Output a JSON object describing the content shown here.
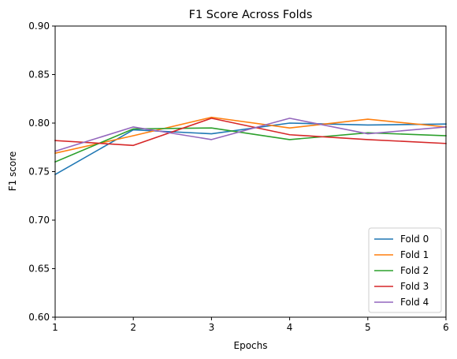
{
  "chart_data": {
    "type": "line",
    "title": "F1 Score Across Folds",
    "xlabel": "Epochs",
    "ylabel": "F1 score",
    "x": [
      1,
      2,
      3,
      4,
      5,
      6
    ],
    "xlim": [
      1,
      6
    ],
    "ylim": [
      0.6,
      0.9
    ],
    "xticks": [
      "1",
      "2",
      "3",
      "4",
      "5",
      "6"
    ],
    "yticks": [
      "0.60",
      "0.65",
      "0.70",
      "0.75",
      "0.80",
      "0.85",
      "0.90"
    ],
    "grid": false,
    "legend": "lower-right",
    "series": [
      {
        "name": "Fold 0",
        "color": "#1f77b4",
        "values": [
          0.747,
          0.793,
          0.789,
          0.8,
          0.798,
          0.799
        ]
      },
      {
        "name": "Fold 1",
        "color": "#ff7f0e",
        "values": [
          0.769,
          0.787,
          0.806,
          0.795,
          0.804,
          0.796
        ]
      },
      {
        "name": "Fold 2",
        "color": "#2ca02c",
        "values": [
          0.76,
          0.794,
          0.795,
          0.783,
          0.79,
          0.787
        ]
      },
      {
        "name": "Fold 3",
        "color": "#d62728",
        "values": [
          0.782,
          0.777,
          0.805,
          0.788,
          0.783,
          0.779
        ]
      },
      {
        "name": "Fold 4",
        "color": "#9467bd",
        "values": [
          0.771,
          0.796,
          0.783,
          0.805,
          0.789,
          0.796
        ]
      }
    ]
  }
}
